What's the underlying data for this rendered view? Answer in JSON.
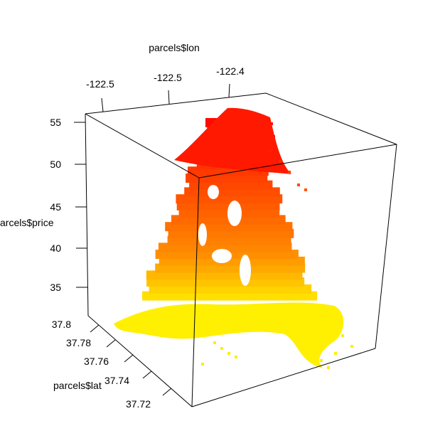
{
  "chart_data": {
    "type": "scatter3d",
    "title": "",
    "axes": {
      "x": {
        "label": "parcels$lon",
        "ticks": [
          "-122.5",
          "-122.5",
          "-122.4"
        ]
      },
      "y": {
        "label": "parcels$lat",
        "ticks": [
          "37.8",
          "37.78",
          "37.76",
          "37.74",
          "37.72"
        ]
      },
      "z": {
        "label": "arcels$price",
        "ticks": [
          "55",
          "50",
          "45",
          "40",
          "35"
        ],
        "range": [
          32,
          56
        ]
      }
    },
    "color_scale": {
      "low": "#ffff00",
      "mid": "#ff8c00",
      "high": "#ff0000"
    },
    "series": [
      {
        "points_sample": [
          {
            "lon": -122.5,
            "lat": 37.78,
            "price": 35
          },
          {
            "lon": -122.48,
            "lat": 37.76,
            "price": 36
          },
          {
            "lon": -122.46,
            "lat": 37.74,
            "price": 38
          },
          {
            "lon": -122.44,
            "lat": 37.78,
            "price": 44
          },
          {
            "lon": -122.43,
            "lat": 37.79,
            "price": 50
          },
          {
            "lon": -122.42,
            "lat": 37.8,
            "price": 55
          },
          {
            "lon": -122.41,
            "lat": 37.78,
            "price": 48
          },
          {
            "lon": -122.4,
            "lat": 37.76,
            "price": 40
          },
          {
            "lon": -122.39,
            "lat": 37.73,
            "price": 34
          },
          {
            "lon": -122.42,
            "lat": 37.72,
            "price": 33
          }
        ]
      }
    ],
    "grid": false,
    "legend": "none"
  }
}
